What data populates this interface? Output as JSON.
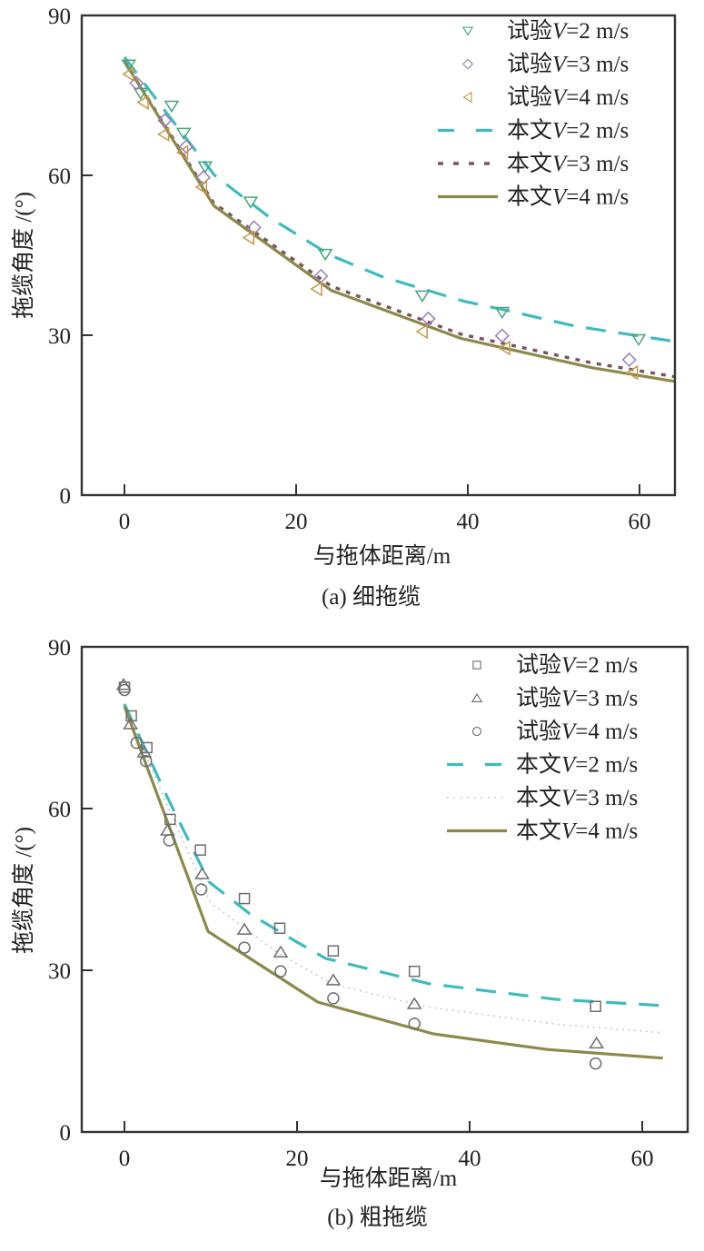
{
  "chart_data": [
    {
      "type": "line",
      "title": "",
      "caption": "(a) 细拖缆",
      "xlabel": "与拖体距离/m",
      "ylabel": "拖缆角度 /(°)",
      "xlim": [
        -5,
        64.2
      ],
      "ylim": [
        0,
        90
      ],
      "xticks": [
        0,
        20,
        40,
        60
      ],
      "yticks": [
        0,
        30,
        60,
        90
      ],
      "grid": false,
      "legend_position": "top-right",
      "series": [
        {
          "name": "试验V=2 m/s",
          "label_prefix": "试验",
          "label_var": "V",
          "label_suffix": "=2 m/s",
          "kind": "scatter",
          "marker": "triangle-down",
          "color": "#4aa57a",
          "x": [
            0.5,
            1.9,
            5.5,
            6.9,
            9.4,
            14.7,
            23.4,
            34.7,
            44.0,
            59.9
          ],
          "y": [
            80.7,
            75.4,
            73.0,
            67.9,
            61.6,
            55.0,
            45.2,
            37.4,
            34.3,
            29.2
          ]
        },
        {
          "name": "试验V=3 m/s",
          "label_prefix": "试验",
          "label_var": "V",
          "label_suffix": "=3 m/s",
          "kind": "scatter",
          "marker": "diamond",
          "color": "#9a7cc0",
          "x": [
            1.4,
            4.7,
            7.2,
            9.2,
            15.1,
            22.9,
            35.4,
            44.0,
            58.8
          ],
          "y": [
            77.3,
            70.3,
            65.4,
            59.6,
            50.2,
            41.1,
            33.1,
            29.9,
            25.4
          ]
        },
        {
          "name": "试验V=4 m/s",
          "label_prefix": "试验",
          "label_var": "V",
          "label_suffix": "=4 m/s",
          "kind": "scatter",
          "marker": "triangle-left",
          "color": "#c9964a",
          "x": [
            0.5,
            2.2,
            4.6,
            6.8,
            9.0,
            14.5,
            22.4,
            34.7,
            44.3,
            59.2
          ],
          "y": [
            79.0,
            73.7,
            67.7,
            64.3,
            57.8,
            48.3,
            38.7,
            30.7,
            27.6,
            23.0
          ]
        },
        {
          "name": "本文V=2 m/s",
          "label_prefix": "本文",
          "label_var": "V",
          "label_suffix": "=2 m/s",
          "kind": "line",
          "style": "dashed",
          "color": "#3dbcc0",
          "x": [
            0,
            5,
            10.5,
            17,
            24,
            30,
            39.5,
            44.4,
            52.5,
            61.4,
            64.2
          ],
          "y": [
            82.2,
            71.5,
            60.0,
            52.0,
            45.0,
            41.0,
            36.4,
            34.7,
            31.7,
            29.5,
            28.8
          ]
        },
        {
          "name": "本文V=3 m/s",
          "label_prefix": "本文",
          "label_var": "V",
          "label_suffix": "=3 m/s",
          "kind": "line",
          "style": "dotted",
          "color": "#7a5560",
          "x": [
            0,
            10.4,
            24.1,
            39.2,
            54.5,
            64.2
          ],
          "y": [
            81.4,
            54.8,
            39.2,
            30.2,
            24.8,
            22.2
          ]
        },
        {
          "name": "本文V=4 m/s",
          "label_prefix": "本文",
          "label_var": "V",
          "label_suffix": "=4 m/s",
          "kind": "line",
          "style": "solid",
          "color": "#8b8a4a",
          "x": [
            0,
            10.4,
            24.1,
            39.2,
            54.5,
            64.2
          ],
          "y": [
            81.4,
            54.3,
            38.4,
            29.4,
            23.9,
            21.3
          ]
        }
      ]
    },
    {
      "type": "line",
      "title": "",
      "caption": "(b) 粗拖缆",
      "xlabel": "与拖体距离/m",
      "ylabel": "拖缆角度 /(°)",
      "xlim": [
        -5,
        65.2
      ],
      "ylim": [
        0,
        90
      ],
      "xticks": [
        0,
        20,
        40,
        60
      ],
      "yticks": [
        0,
        30,
        60,
        90
      ],
      "grid": false,
      "legend_position": "top-right",
      "series": [
        {
          "name": "试验V=2 m/s",
          "label_prefix": "试验",
          "label_var": "V",
          "label_suffix": "=2 m/s",
          "kind": "scatter",
          "marker": "square",
          "color": "#6e6e6e",
          "x": [
            0.0,
            0.8,
            2.6,
            5.3,
            8.8,
            13.9,
            18.0,
            24.2,
            33.6,
            54.6
          ],
          "y": [
            82.5,
            77.2,
            71.3,
            58.0,
            52.3,
            43.3,
            37.8,
            33.6,
            29.8,
            23.3
          ]
        },
        {
          "name": "试验V=3 m/s",
          "label_prefix": "试验",
          "label_var": "V",
          "label_suffix": "=3 m/s",
          "kind": "scatter",
          "marker": "triangle-up",
          "color": "#6e6e6e",
          "x": [
            -0.1,
            0.7,
            2.3,
            5.0,
            9.0,
            13.9,
            18.1,
            24.2,
            33.6,
            54.7
          ],
          "y": [
            83.0,
            75.7,
            70.5,
            56.0,
            47.9,
            37.6,
            33.4,
            28.2,
            23.8,
            16.5
          ]
        },
        {
          "name": "试验V=4 m/s",
          "label_prefix": "试验",
          "label_var": "V",
          "label_suffix": "=4 m/s",
          "kind": "scatter",
          "marker": "circle",
          "color": "#6e6e6e",
          "x": [
            0.0,
            1.4,
            2.5,
            5.2,
            8.9,
            13.9,
            18.1,
            24.2,
            33.6,
            54.6
          ],
          "y": [
            82.0,
            72.2,
            68.8,
            54.1,
            45.0,
            34.2,
            29.8,
            24.8,
            20.1,
            12.7
          ]
        },
        {
          "name": "本文V=2 m/s",
          "label_prefix": "本文",
          "label_var": "V",
          "label_suffix": "=2 m/s",
          "kind": "line",
          "style": "dashed",
          "color": "#3dbcc0",
          "x": [
            0,
            5,
            9.8,
            14.5,
            19.6,
            23.3,
            35.3,
            50.0,
            63.0
          ],
          "y": [
            79.4,
            62.0,
            46.4,
            40.5,
            35.6,
            32.2,
            27.5,
            24.6,
            23.4
          ]
        },
        {
          "name": "本文V=3 m/s",
          "label_prefix": "本文",
          "label_var": "V",
          "label_suffix": "=3 m/s",
          "kind": "line",
          "style": "dotted",
          "color": "#b8b8b8",
          "x": [
            0,
            5,
            10.0,
            18.0,
            24.0,
            35.0,
            50.0,
            62.4
          ],
          "y": [
            79.0,
            60.5,
            42.5,
            33.0,
            27.5,
            23.2,
            20.0,
            18.4
          ]
        },
        {
          "name": "本文V=4 m/s",
          "label_prefix": "本文",
          "label_var": "V",
          "label_suffix": "=4 m/s",
          "kind": "line",
          "style": "solid",
          "color": "#8b8a4a",
          "x": [
            0,
            9.7,
            22.4,
            35.8,
            49.0,
            62.4
          ],
          "y": [
            79.0,
            37.2,
            24.1,
            18.2,
            15.3,
            13.7
          ]
        }
      ]
    }
  ]
}
